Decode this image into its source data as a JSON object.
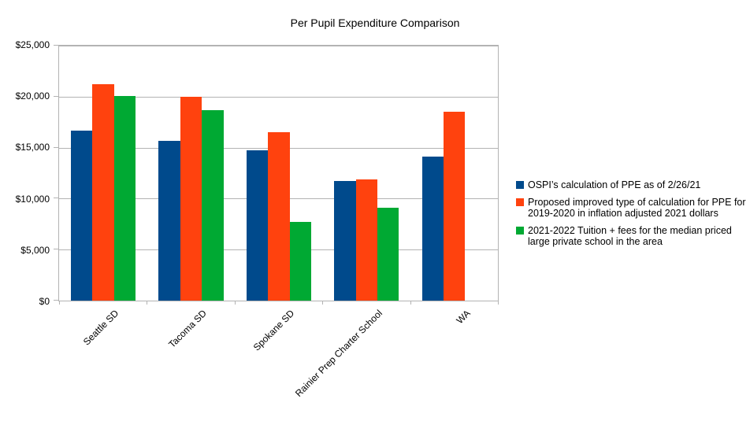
{
  "chart_data": {
    "type": "bar",
    "title": "Per Pupil Expenditure Comparison",
    "categories": [
      "Seattle SD",
      "Tacoma SD",
      "Spokane SD",
      "Rainier Prep Charter School",
      "WA"
    ],
    "series": [
      {
        "name": "OSPI’s calculation of PPE as of 2/26/21",
        "color": "#004a8c",
        "values": [
          16700,
          15650,
          14750,
          11700,
          14150
        ]
      },
      {
        "name": "Proposed improved type of calculation for PPE for 2019-2020 in inflation adjusted 2021 dollars",
        "color": "#ff420e",
        "values": [
          21200,
          20000,
          16550,
          11850,
          18550
        ]
      },
      {
        "name": "2021-2022 Tuition + fees for the median priced large private school in the area",
        "color": "#00a933",
        "values": [
          20100,
          18650,
          7700,
          9100,
          null
        ]
      }
    ],
    "ylim": [
      0,
      25000
    ],
    "ytick_step": 5000,
    "ytick_labels": [
      "$0",
      "$5,000",
      "$10,000",
      "$15,000",
      "$20,000",
      "$25,000"
    ],
    "grid": true,
    "legend_position": "right",
    "style": {
      "gridline_color": "#b3b3b3",
      "axis_color": "#b3b3b3",
      "text_color": "#000000",
      "background_color": "#ffffff"
    }
  }
}
